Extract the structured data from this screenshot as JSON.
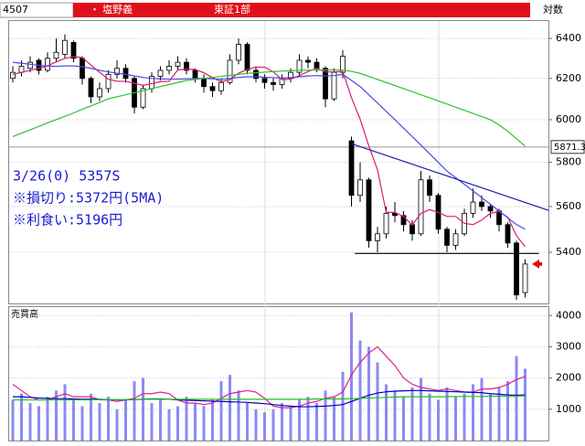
{
  "header": {
    "code": "4507",
    "bullet": "・",
    "name": "塩野義",
    "market": "東証1部",
    "scale_label": "対数"
  },
  "chart_data": [
    {
      "type": "candlestick",
      "log": true,
      "grid": true,
      "ylim": [
        5185,
        6494
      ],
      "yticks": [
        5400,
        5600,
        5800,
        6000,
        6200,
        6400
      ],
      "annotations": [
        "3/26(0) 5357S",
        "※損切り:5372円(5MA)",
        "※利食い:5196円"
      ],
      "marker_value": 5871.3,
      "up_color": "#ffffff",
      "down_color": "#000000",
      "open": [
        6200,
        6230,
        6250,
        6290,
        6240,
        6300,
        6320,
        6380,
        6300,
        6200,
        6110,
        6150,
        6220,
        6250,
        6200,
        6060,
        6150,
        6210,
        6240,
        6260,
        6280,
        6240,
        6200,
        6160,
        6140,
        6180,
        6290,
        6370,
        6240,
        6200,
        6180,
        6170,
        6200,
        6230,
        6290,
        6280,
        6250,
        6100,
        6230,
        5900,
        5650,
        5720,
        5450,
        5480,
        5570,
        5560,
        5520,
        5480,
        5720,
        5650,
        5500,
        5430,
        5480,
        5570,
        5620,
        5600,
        5580,
        5520,
        5440,
        5230
      ],
      "high": [
        6260,
        6290,
        6310,
        6300,
        6330,
        6400,
        6420,
        6390,
        6310,
        6210,
        6180,
        6240,
        6290,
        6270,
        6210,
        6170,
        6230,
        6260,
        6290,
        6310,
        6300,
        6250,
        6220,
        6180,
        6200,
        6320,
        6400,
        6380,
        6260,
        6220,
        6200,
        6220,
        6250,
        6320,
        6310,
        6300,
        6260,
        6250,
        6340,
        5920,
        5800,
        5730,
        5510,
        5600,
        5620,
        5580,
        5540,
        5760,
        5740,
        5660,
        5510,
        5500,
        5590,
        5680,
        5650,
        5610,
        5590,
        5530,
        5450,
        5370
      ],
      "low": [
        6180,
        6210,
        6230,
        6220,
        6230,
        6280,
        6300,
        6280,
        6170,
        6080,
        6090,
        6130,
        6200,
        6180,
        6030,
        6050,
        6130,
        6190,
        6220,
        6240,
        6220,
        6180,
        6130,
        6110,
        6120,
        6170,
        6270,
        6220,
        6180,
        6150,
        6140,
        6150,
        6180,
        6210,
        6250,
        6230,
        6060,
        6090,
        6200,
        5600,
        5620,
        5420,
        5400,
        5460,
        5530,
        5490,
        5450,
        5470,
        5620,
        5480,
        5400,
        5410,
        5470,
        5550,
        5580,
        5550,
        5490,
        5420,
        5200,
        5210
      ],
      "close": [
        6230,
        6260,
        6280,
        6240,
        6300,
        6330,
        6390,
        6300,
        6200,
        6110,
        6150,
        6220,
        6250,
        6200,
        6060,
        6150,
        6210,
        6240,
        6260,
        6280,
        6240,
        6200,
        6160,
        6140,
        6180,
        6290,
        6370,
        6240,
        6200,
        6180,
        6170,
        6200,
        6230,
        6290,
        6280,
        6250,
        6100,
        6230,
        6310,
        5650,
        5720,
        5450,
        5480,
        5570,
        5560,
        5520,
        5480,
        5720,
        5650,
        5500,
        5430,
        5480,
        5570,
        5620,
        5600,
        5580,
        5520,
        5440,
        5220,
        5350
      ],
      "series": [
        {
          "color": "#d81b7a",
          "values": [
            6220,
            6230,
            6240,
            6250,
            6262,
            6282,
            6300,
            6308,
            6304,
            6266,
            6230,
            6196,
            6186,
            6186,
            6176,
            6166,
            6174,
            6184,
            6186,
            6242,
            6246,
            6244,
            6228,
            6204,
            6184,
            6194,
            6226,
            6244,
            6256,
            6256,
            6232,
            6194,
            6196,
            6214,
            6234,
            6250,
            6232,
            6232,
            6234,
            6106,
            6002,
            5876,
            5766,
            5574,
            5574,
            5556,
            5518,
            5570,
            5586,
            5574,
            5556,
            5556,
            5526,
            5520,
            5540,
            5570,
            5578,
            5552,
            5472,
            5424
          ]
        },
        {
          "color": "#4a4ae0",
          "values": [
            6280,
            6275,
            6270,
            6265,
            6262,
            6260,
            6262,
            6262,
            6258,
            6250,
            6240,
            6232,
            6226,
            6220,
            6212,
            6205,
            6200,
            6198,
            6196,
            6196,
            6198,
            6200,
            6200,
            6198,
            6196,
            6200,
            6205,
            6208,
            6208,
            6206,
            6204,
            6202,
            6204,
            6208,
            6212,
            6214,
            6212,
            6214,
            6220,
            6190,
            6160,
            6120,
            6080,
            6040,
            6000,
            5960,
            5920,
            5880,
            5840,
            5800,
            5760,
            5730,
            5700,
            5670,
            5640,
            5610,
            5580,
            5550,
            5520,
            5500
          ]
        },
        {
          "color": "#30c030",
          "values": [
            5920,
            5936,
            5952,
            5968,
            5985,
            6000,
            6016,
            6032,
            6050,
            6066,
            6083,
            6100,
            6110,
            6120,
            6130,
            6140,
            6150,
            6160,
            6170,
            6180,
            6190,
            6195,
            6200,
            6205,
            6210,
            6215,
            6220,
            6225,
            6228,
            6231,
            6234,
            6236,
            6238,
            6240,
            6241,
            6242,
            6242,
            6242,
            6241,
            6235,
            6225,
            6210,
            6195,
            6180,
            6165,
            6150,
            6135,
            6120,
            6105,
            6090,
            6075,
            6060,
            6045,
            6030,
            6015,
            6000,
            5975,
            5945,
            5910,
            5875
          ]
        }
      ],
      "lines": [
        {
          "color": "#1c1ca8",
          "x": [
            39,
            61.7
          ],
          "y": [
            5887,
            5583
          ]
        },
        {
          "color": "#000000",
          "x": [
            39.4,
            60.6
          ],
          "y": [
            5395,
            5395
          ]
        }
      ]
    },
    {
      "type": "bar",
      "title": "売買高",
      "color": "#8a8af5",
      "grid": true,
      "ylim": [
        0,
        4300
      ],
      "yticks": [
        1000,
        2000,
        3000,
        4000
      ],
      "values": [
        1300,
        1500,
        1200,
        1100,
        1400,
        1600,
        1800,
        1300,
        1100,
        1500,
        1200,
        1400,
        1000,
        1300,
        1900,
        2000,
        1200,
        1300,
        1000,
        1100,
        1400,
        1200,
        1100,
        1300,
        1900,
        2100,
        1600,
        1200,
        1000,
        900,
        1000,
        1200,
        1100,
        1300,
        1400,
        1200,
        1600,
        1400,
        2200,
        4100,
        3200,
        3000,
        2500,
        1800,
        1600,
        1400,
        1700,
        2000,
        1500,
        1300,
        1700,
        1400,
        1500,
        1800,
        2000,
        1500,
        1700,
        1900,
        2700,
        2300
      ],
      "series": [
        {
          "color": "#e0208a",
          "values": [
            1800,
            1600,
            1400,
            1300,
            1300,
            1400,
            1500,
            1400,
            1400,
            1400,
            1300,
            1300,
            1250,
            1300,
            1350,
            1500,
            1500,
            1550,
            1500,
            1300,
            1200,
            1200,
            1150,
            1200,
            1350,
            1500,
            1550,
            1600,
            1550,
            1350,
            1100,
            1050,
            1050,
            1100,
            1200,
            1250,
            1350,
            1400,
            1550,
            2100,
            2500,
            2800,
            3000,
            2700,
            2400,
            2000,
            1800,
            1700,
            1650,
            1600,
            1650,
            1600,
            1550,
            1550,
            1650,
            1650,
            1700,
            1800,
            1950,
            2050
          ]
        },
        {
          "color": "#0000c0",
          "values": [
            1400,
            1400,
            1380,
            1360,
            1350,
            1340,
            1340,
            1330,
            1320,
            1320,
            1320,
            1310,
            1300,
            1300,
            1310,
            1320,
            1330,
            1330,
            1320,
            1300,
            1290,
            1280,
            1270,
            1260,
            1250,
            1240,
            1230,
            1220,
            1200,
            1180,
            1150,
            1120,
            1100,
            1080,
            1080,
            1090,
            1100,
            1120,
            1150,
            1250,
            1350,
            1450,
            1520,
            1560,
            1580,
            1590,
            1600,
            1600,
            1590,
            1580,
            1570,
            1560,
            1550,
            1540,
            1530,
            1500,
            1480,
            1460,
            1450,
            1460
          ]
        },
        {
          "color": "#20c020",
          "values": [
            1300,
            1300,
            1300,
            1300,
            1300,
            1300,
            1300,
            1300,
            1300,
            1300,
            1310,
            1310,
            1310,
            1310,
            1310,
            1320,
            1320,
            1320,
            1320,
            1320,
            1320,
            1320,
            1320,
            1320,
            1320,
            1320,
            1320,
            1320,
            1320,
            1320,
            1320,
            1320,
            1320,
            1320,
            1320,
            1330,
            1330,
            1330,
            1330,
            1340,
            1350,
            1360,
            1370,
            1380,
            1390,
            1400,
            1400,
            1400,
            1400,
            1400,
            1400,
            1410,
            1410,
            1410,
            1410,
            1420,
            1420,
            1420,
            1420,
            1430
          ]
        }
      ]
    }
  ]
}
